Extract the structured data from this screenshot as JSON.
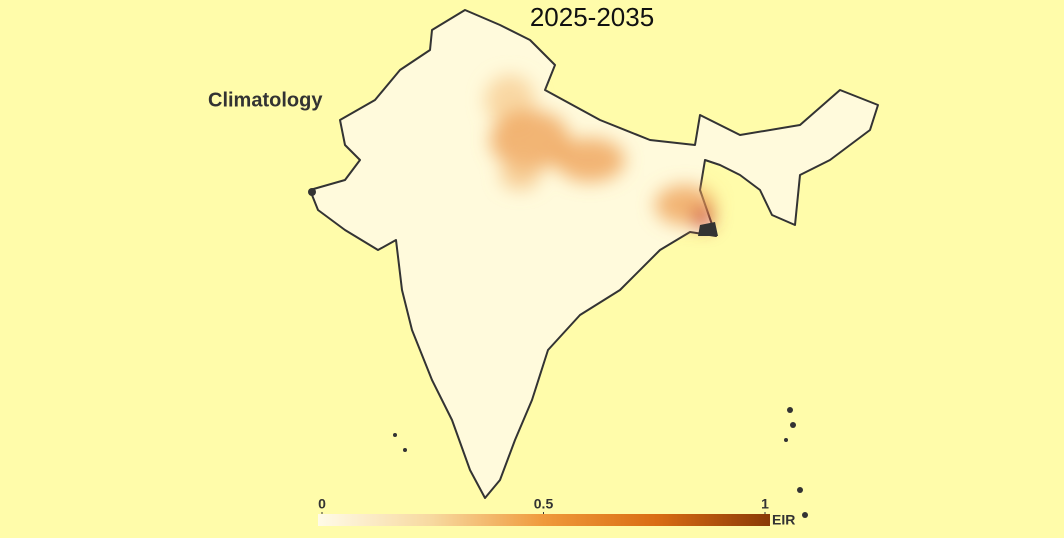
{
  "title": "2025-2035",
  "label": "Climatology",
  "colorbar": {
    "label": "EIR",
    "lim": [
      0,
      1
    ],
    "ticks": [
      0,
      0.5,
      1
    ],
    "colors": [
      "#fffbe8",
      "#f7d9a0",
      "#ef9a3c",
      "#d96c14",
      "#8a3a06"
    ]
  }
}
